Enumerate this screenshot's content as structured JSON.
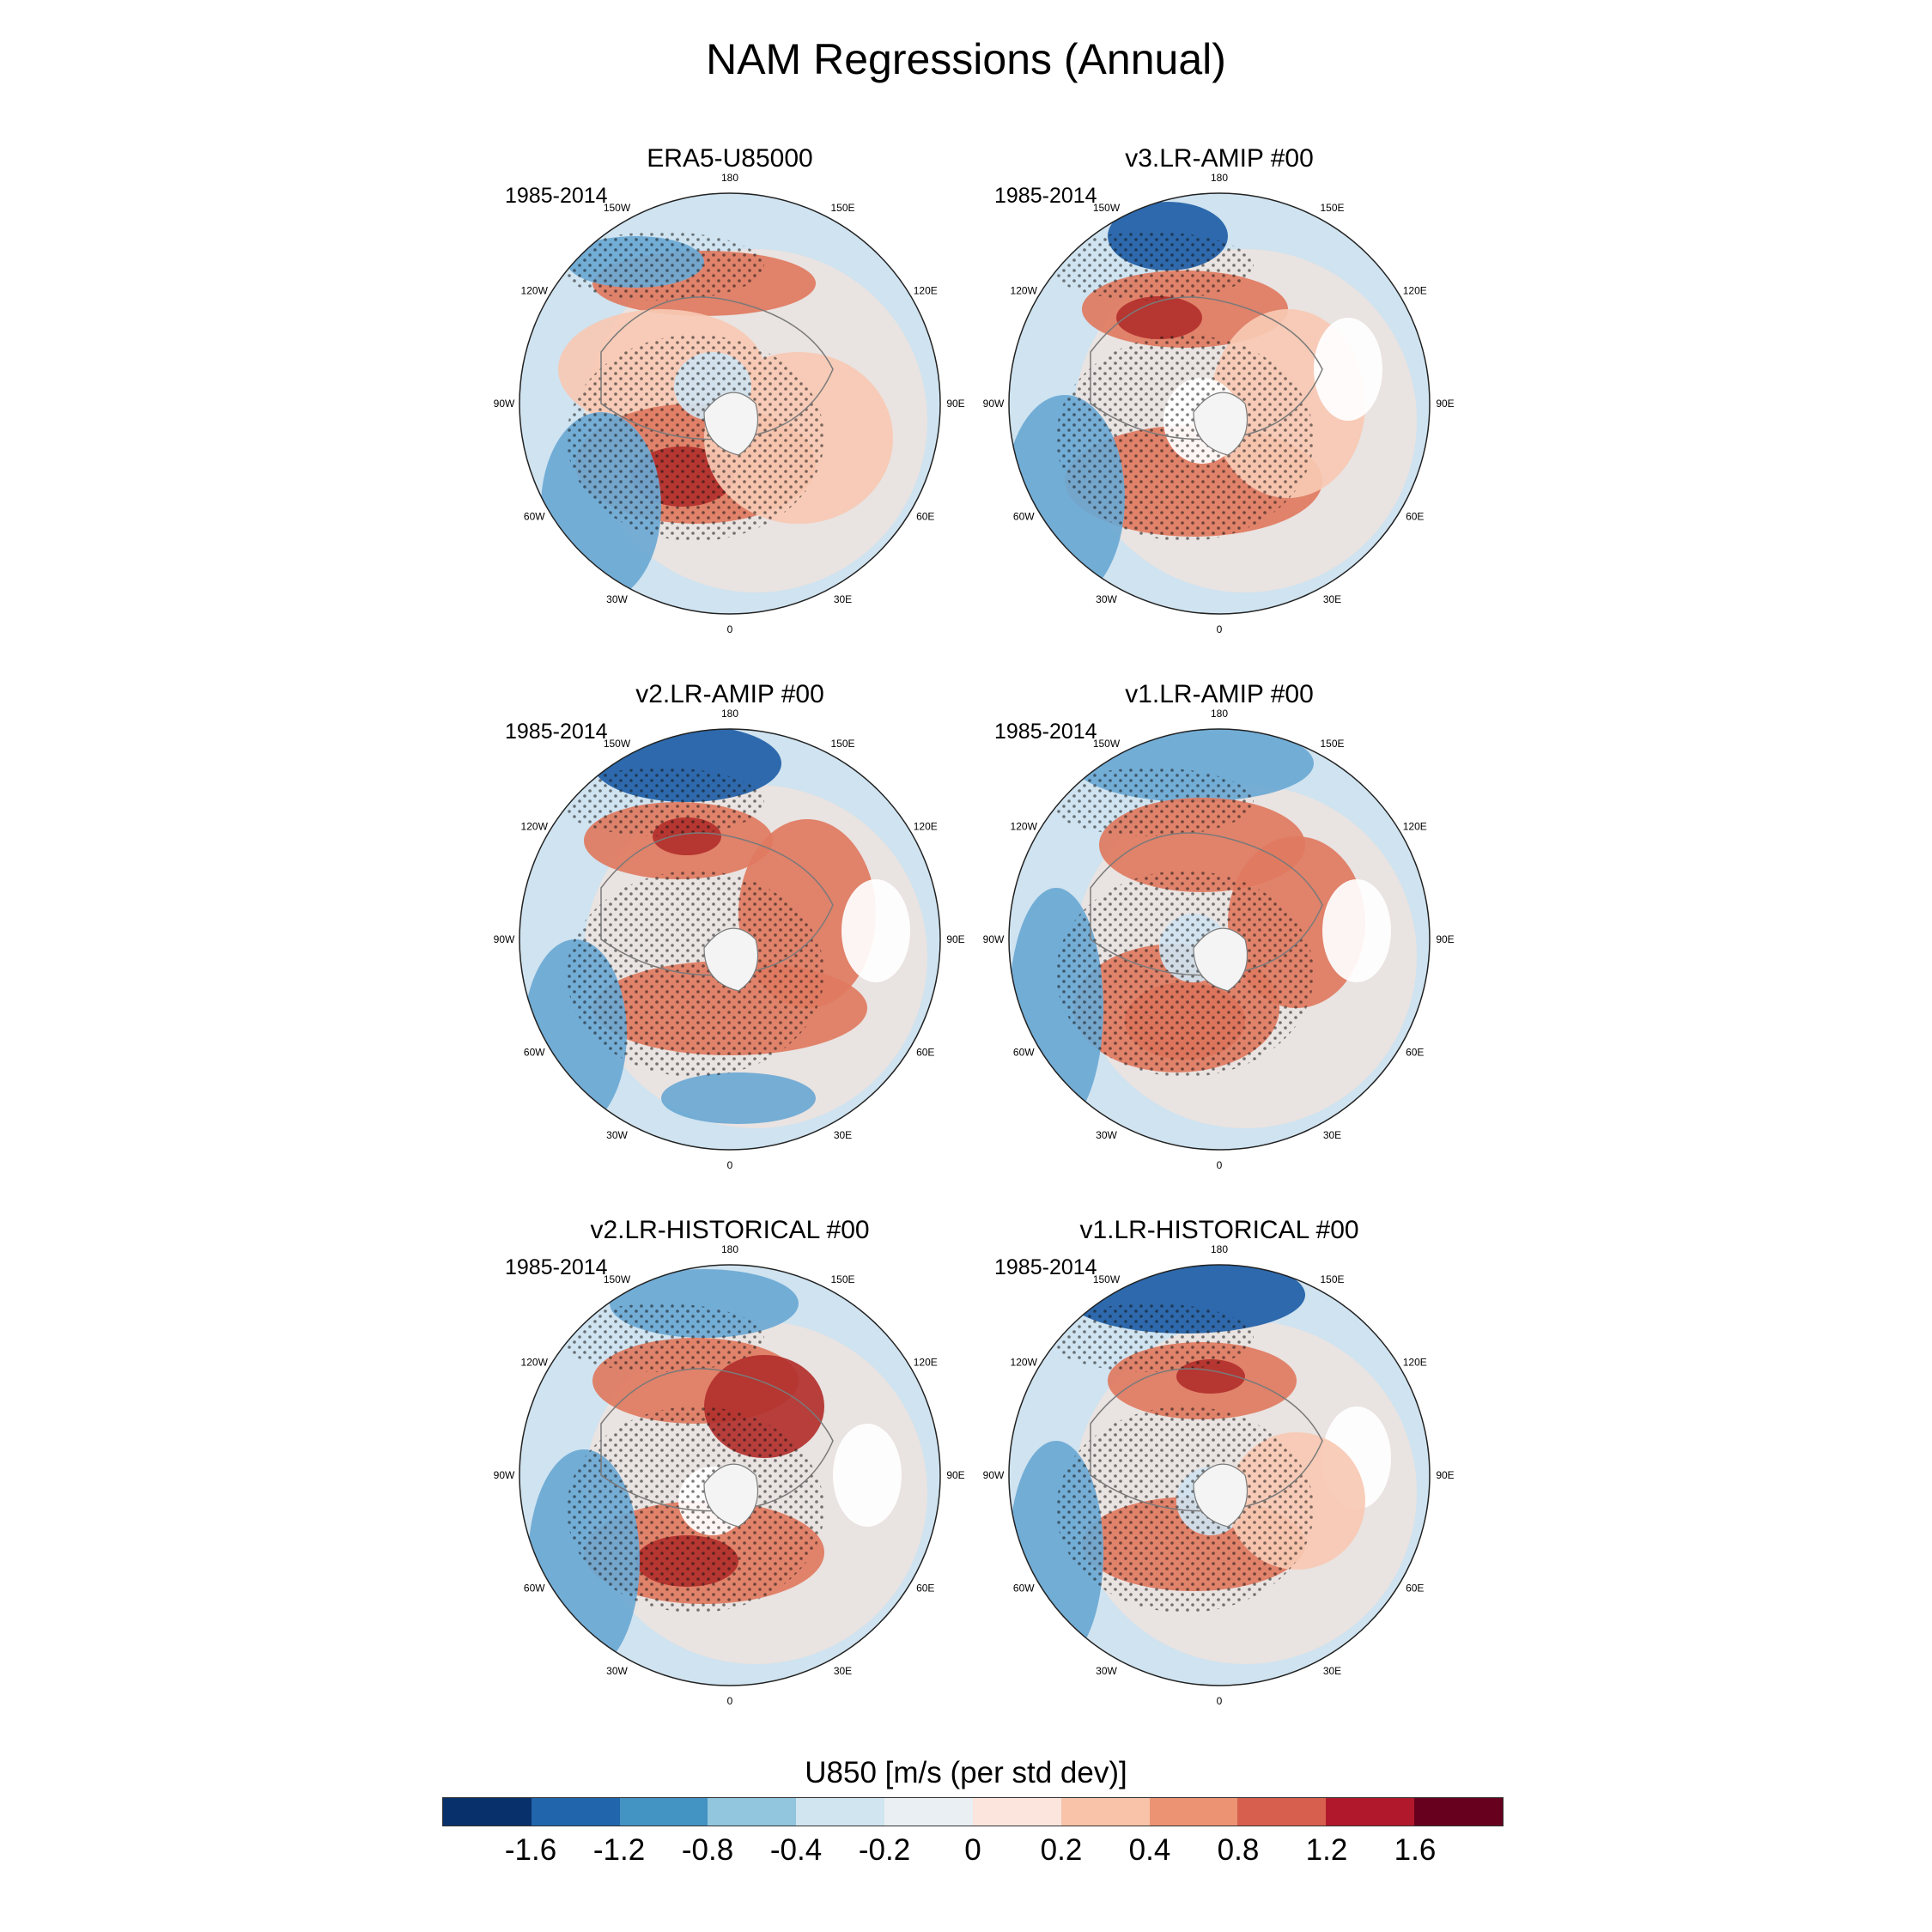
{
  "title": "NAM Regressions (Annual)",
  "colors": {
    "strong_neg": "#1f5ea6",
    "mid_neg": "#6aa8d4",
    "weak_neg": "#cfe3f0",
    "strong_pos": "#b2302c",
    "mid_pos": "#e07a5f",
    "weak_pos": "#f7c9b3",
    "missing": "#ffffff",
    "coast": "#7a7a7a"
  },
  "panels": [
    {
      "title": "ERA5-U85000",
      "period": "1985-2014",
      "pattern": 0
    },
    {
      "title": "v3.LR-AMIP  #00",
      "period": "1985-2014",
      "pattern": 1
    },
    {
      "title": "v2.LR-AMIP  #00",
      "period": "1985-2014",
      "pattern": 2
    },
    {
      "title": "v1.LR-AMIP  #00",
      "period": "1985-2014",
      "pattern": 3
    },
    {
      "title": "v2.LR-HISTORICAL  #00",
      "period": "1985-2014",
      "pattern": 4
    },
    {
      "title": "v1.LR-HISTORICAL  #00",
      "period": "1985-2014",
      "pattern": 5
    }
  ],
  "longitude_labels": [
    "180",
    "150E",
    "120E",
    "90E",
    "60E",
    "30E",
    "0",
    "30W",
    "60W",
    "90W",
    "120W",
    "150W"
  ],
  "colorbar": {
    "title": "U850 [m/s (per std dev)]",
    "colors": [
      "#08306b",
      "#2166ac",
      "#4393c3",
      "#92c5de",
      "#d1e5f0",
      "#e9eff3",
      "#fbe5dc",
      "#f8c3a9",
      "#ec9373",
      "#d6604d",
      "#b2182b",
      "#67001f"
    ],
    "ticks": [
      "-1.6",
      "-1.2",
      "-0.8",
      "-0.4",
      "-0.2",
      "0",
      "0.2",
      "0.4",
      "0.8",
      "1.2",
      "1.6"
    ]
  }
}
